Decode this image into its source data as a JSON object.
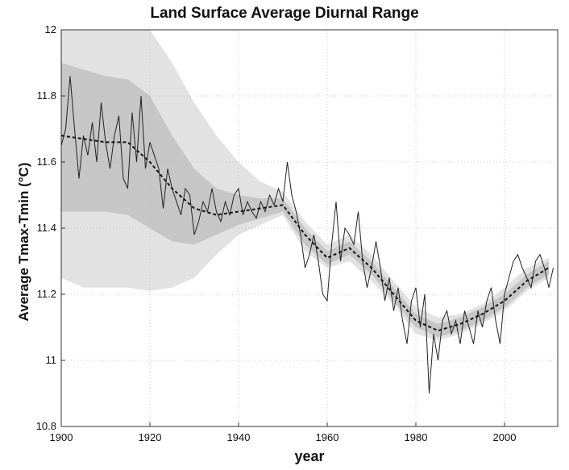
{
  "chart_data": {
    "type": "line",
    "title": "Land Surface Average Diurnal Range",
    "xlabel": "year",
    "ylabel": "Average Tmax-Tmin (°C)",
    "xlim": [
      1900,
      2012
    ],
    "ylim": [
      10.8,
      12
    ],
    "x_ticks": [
      1900,
      1920,
      1940,
      1960,
      1980,
      2000
    ],
    "x_tick_labels": [
      "1900",
      "1920",
      "1940",
      "1960",
      "1980",
      "2000"
    ],
    "y_ticks": [
      10.8,
      11,
      11.2,
      11.4,
      11.6,
      11.8,
      12
    ],
    "y_tick_labels": [
      "10.8",
      "11",
      "11.2",
      "11.4",
      "11.6",
      "11.8",
      "12"
    ],
    "grid": true,
    "series": [
      {
        "style": "thin-solid",
        "color": "#222222",
        "x": [
          1900,
          1901,
          1902,
          1903,
          1904,
          1905,
          1906,
          1907,
          1908,
          1909,
          1910,
          1911,
          1912,
          1913,
          1914,
          1915,
          1916,
          1917,
          1918,
          1919,
          1920,
          1921,
          1922,
          1923,
          1924,
          1925,
          1926,
          1927,
          1928,
          1929,
          1930,
          1931,
          1932,
          1933,
          1934,
          1935,
          1936,
          1937,
          1938,
          1939,
          1940,
          1941,
          1942,
          1943,
          1944,
          1945,
          1946,
          1947,
          1948,
          1949,
          1950,
          1951,
          1952,
          1953,
          1954,
          1955,
          1956,
          1957,
          1958,
          1959,
          1960,
          1961,
          1962,
          1963,
          1964,
          1965,
          1966,
          1967,
          1968,
          1969,
          1970,
          1971,
          1972,
          1973,
          1974,
          1975,
          1976,
          1977,
          1978,
          1979,
          1980,
          1981,
          1982,
          1983,
          1984,
          1985,
          1986,
          1987,
          1988,
          1989,
          1990,
          1991,
          1992,
          1993,
          1994,
          1995,
          1996,
          1997,
          1998,
          1999,
          2000,
          2001,
          2002,
          2003,
          2004,
          2005,
          2006,
          2007,
          2008,
          2009,
          2010,
          2011
        ],
        "y": [
          11.65,
          11.7,
          11.86,
          11.7,
          11.55,
          11.68,
          11.62,
          11.72,
          11.6,
          11.78,
          11.66,
          11.58,
          11.68,
          11.74,
          11.55,
          11.52,
          11.75,
          11.6,
          11.8,
          11.58,
          11.66,
          11.62,
          11.58,
          11.46,
          11.58,
          11.52,
          11.48,
          11.44,
          11.52,
          11.5,
          11.38,
          11.42,
          11.48,
          11.45,
          11.52,
          11.45,
          11.42,
          11.48,
          11.44,
          11.5,
          11.52,
          11.44,
          11.48,
          11.45,
          11.43,
          11.48,
          11.45,
          11.5,
          11.47,
          11.52,
          11.48,
          11.6,
          11.5,
          11.45,
          11.38,
          11.28,
          11.32,
          11.38,
          11.3,
          11.2,
          11.18,
          11.35,
          11.48,
          11.3,
          11.4,
          11.38,
          11.35,
          11.45,
          11.3,
          11.22,
          11.28,
          11.36,
          11.28,
          11.18,
          11.25,
          11.15,
          11.22,
          11.12,
          11.05,
          11.18,
          11.22,
          11.1,
          11.2,
          10.9,
          11.08,
          11.0,
          11.12,
          11.15,
          11.08,
          11.12,
          11.05,
          11.15,
          11.1,
          11.05,
          11.15,
          11.1,
          11.18,
          11.22,
          11.12,
          11.05,
          11.2,
          11.25,
          11.3,
          11.32,
          11.28,
          11.25,
          11.22,
          11.3,
          11.32,
          11.28,
          11.22,
          11.28
        ]
      },
      {
        "style": "thick-dashed",
        "color": "#111111",
        "x": [
          1900,
          1905,
          1910,
          1915,
          1920,
          1925,
          1930,
          1935,
          1940,
          1945,
          1950,
          1955,
          1960,
          1965,
          1970,
          1975,
          1980,
          1985,
          1990,
          1995,
          2000,
          2005,
          2010
        ],
        "y": [
          11.68,
          11.67,
          11.66,
          11.66,
          11.6,
          11.52,
          11.46,
          11.44,
          11.45,
          11.46,
          11.47,
          11.38,
          11.31,
          11.34,
          11.28,
          11.2,
          11.12,
          11.09,
          11.11,
          11.14,
          11.18,
          11.24,
          11.28
        ]
      }
    ],
    "uncertainty_bands": [
      {
        "level": "outer",
        "color": "#e2e2e2",
        "x": [
          1900,
          1905,
          1910,
          1915,
          1920,
          1925,
          1930,
          1935,
          1940,
          1945,
          1950,
          1955,
          1960,
          1965,
          1970,
          1975,
          1980,
          1985,
          1990,
          1995,
          2000,
          2005,
          2010
        ],
        "lower": [
          11.25,
          11.22,
          11.22,
          11.22,
          11.21,
          11.22,
          11.25,
          11.32,
          11.38,
          11.41,
          11.44,
          11.33,
          11.28,
          11.3,
          11.24,
          11.17,
          11.08,
          11.06,
          11.08,
          11.11,
          11.15,
          11.21,
          11.25
        ],
        "upper": [
          12.0,
          12.0,
          12.0,
          12.0,
          12.0,
          11.9,
          11.78,
          11.68,
          11.6,
          11.54,
          11.51,
          11.42,
          11.35,
          11.38,
          11.32,
          11.24,
          11.16,
          11.13,
          11.14,
          11.17,
          11.22,
          11.28,
          11.31
        ]
      },
      {
        "level": "inner",
        "color": "#c6c6c6",
        "x": [
          1900,
          1905,
          1910,
          1915,
          1920,
          1925,
          1930,
          1935,
          1940,
          1945,
          1950,
          1955,
          1960,
          1965,
          1970,
          1975,
          1980,
          1985,
          1990,
          1995,
          2000,
          2005,
          2010
        ],
        "lower": [
          11.45,
          11.45,
          11.45,
          11.44,
          11.4,
          11.36,
          11.35,
          11.38,
          11.41,
          11.43,
          11.45,
          11.35,
          11.29,
          11.32,
          11.26,
          11.18,
          11.1,
          11.07,
          11.09,
          11.12,
          11.16,
          11.22,
          11.26
        ],
        "upper": [
          11.9,
          11.88,
          11.86,
          11.85,
          11.8,
          11.68,
          11.58,
          11.52,
          11.5,
          11.49,
          11.49,
          11.4,
          11.33,
          11.36,
          11.3,
          11.22,
          11.14,
          11.11,
          11.13,
          11.16,
          11.2,
          11.26,
          11.3
        ]
      }
    ]
  }
}
